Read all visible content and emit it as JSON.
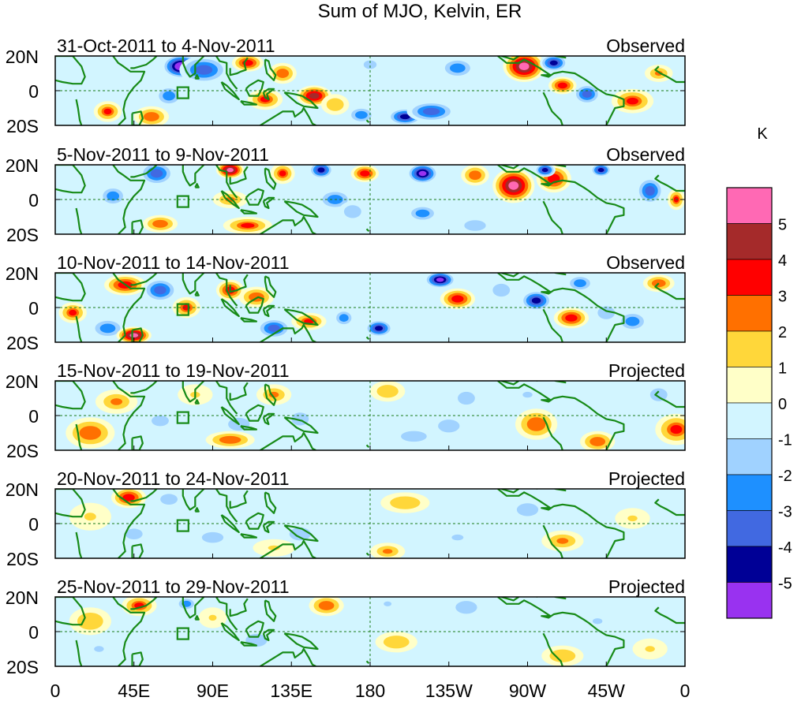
{
  "chart_data": {
    "type": "heatmap",
    "title": "Sum of MJO, Kelvin, ER",
    "colorbar": {
      "unit": "K",
      "tick_labels": [
        "5",
        "4",
        "3",
        "2",
        "1",
        "0",
        "-1",
        "-2",
        "-3",
        "-4",
        "-5"
      ],
      "levels": [
        {
          "range": "> 5",
          "color": "#ff69b4"
        },
        {
          "range": "4 to 5",
          "color": "#a52a2a"
        },
        {
          "range": "3 to 4",
          "color": "#ff0000"
        },
        {
          "range": "2 to 3",
          "color": "#ff7000"
        },
        {
          "range": "1 to 2",
          "color": "#ffd73a"
        },
        {
          "range": "0 to 1",
          "color": "#ffffc8"
        },
        {
          "range": "-1 to 0",
          "color": "#d2f5ff"
        },
        {
          "range": "-2 to -1",
          "color": "#a0d2ff"
        },
        {
          "range": "-3 to -2",
          "color": "#1e90ff"
        },
        {
          "range": "-4 to -3",
          "color": "#4169e1"
        },
        {
          "range": "-5 to -4",
          "color": "#000096"
        },
        {
          "range": "< -5",
          "color": "#9932f0"
        }
      ]
    },
    "x_ticks": [
      "0",
      "45E",
      "90E",
      "135E",
      "180",
      "135W",
      "90W",
      "45W",
      "0"
    ],
    "y_ticks": [
      "20N",
      "0",
      "20S"
    ],
    "xlim": [
      0,
      360
    ],
    "ylim": [
      -20,
      20
    ],
    "panels": [
      {
        "date_range": "31-Oct-2011 to 4-Nov-2011",
        "status": "Observed",
        "blobs": [
          [
            72,
            14,
            11,
            7,
            -6.5
          ],
          [
            85,
            12,
            14,
            8,
            -4
          ],
          [
            65,
            -3,
            8,
            6,
            -3
          ],
          [
            55,
            -15,
            10,
            6,
            2.5
          ],
          [
            110,
            16,
            9,
            5,
            3.5
          ],
          [
            130,
            10,
            8,
            6,
            2.5
          ],
          [
            120,
            -5,
            10,
            6,
            3
          ],
          [
            148,
            -3,
            10,
            6,
            4.5
          ],
          [
            160,
            -8,
            8,
            6,
            1.5
          ],
          [
            200,
            -15,
            10,
            5,
            -5
          ],
          [
            215,
            -12,
            14,
            6,
            -3.5
          ],
          [
            175,
            -14,
            8,
            5,
            -3
          ],
          [
            230,
            13,
            10,
            6,
            -2.5
          ],
          [
            268,
            14,
            12,
            9,
            5.5
          ],
          [
            285,
            16,
            8,
            5,
            -4.5
          ],
          [
            290,
            3,
            8,
            5,
            3.5
          ],
          [
            304,
            -2,
            8,
            6,
            -4
          ],
          [
            330,
            -6,
            12,
            7,
            3
          ],
          [
            345,
            10,
            8,
            5,
            2
          ],
          [
            30,
            -12,
            8,
            6,
            3
          ],
          [
            180,
            15,
            6,
            4,
            -2
          ]
        ]
      },
      {
        "date_range": "5-Nov-2011 to 9-Nov-2011",
        "status": "Observed",
        "blobs": [
          [
            58,
            15,
            10,
            7,
            -4
          ],
          [
            100,
            17,
            8,
            5,
            5.5
          ],
          [
            130,
            15,
            7,
            6,
            3
          ],
          [
            152,
            17,
            7,
            5,
            -5
          ],
          [
            177,
            15,
            8,
            5,
            3.5
          ],
          [
            210,
            15,
            9,
            6,
            -5.5
          ],
          [
            240,
            14,
            8,
            6,
            2.5
          ],
          [
            262,
            8,
            12,
            10,
            5.5
          ],
          [
            285,
            12,
            10,
            8,
            3.5
          ],
          [
            280,
            17,
            6,
            4,
            -5
          ],
          [
            312,
            17,
            6,
            4,
            -5
          ],
          [
            340,
            5,
            8,
            8,
            -4
          ],
          [
            355,
            0,
            5,
            6,
            3
          ],
          [
            160,
            0,
            10,
            6,
            -2.5
          ],
          [
            170,
            -7,
            8,
            6,
            -2
          ],
          [
            210,
            -8,
            9,
            5,
            -3
          ],
          [
            240,
            -15,
            10,
            5,
            -2
          ],
          [
            110,
            -15,
            14,
            5,
            3
          ],
          [
            60,
            -14,
            10,
            5,
            2.5
          ],
          [
            33,
            2,
            8,
            6,
            -2.5
          ],
          [
            100,
            0,
            10,
            5,
            2
          ]
        ]
      },
      {
        "date_range": "10-Nov-2011 to 14-Nov-2011",
        "status": "Observed",
        "blobs": [
          [
            40,
            13,
            12,
            6,
            3.5
          ],
          [
            60,
            10,
            10,
            7,
            -3.5
          ],
          [
            75,
            0,
            8,
            6,
            3
          ],
          [
            100,
            10,
            8,
            6,
            3.5
          ],
          [
            115,
            6,
            10,
            6,
            2.5
          ],
          [
            125,
            -12,
            10,
            6,
            -3.5
          ],
          [
            145,
            -8,
            10,
            5,
            3
          ],
          [
            165,
            -6,
            6,
            5,
            -2.5
          ],
          [
            185,
            -12,
            8,
            5,
            -5
          ],
          [
            220,
            16,
            9,
            5,
            -5.5
          ],
          [
            230,
            5,
            10,
            6,
            3.5
          ],
          [
            255,
            10,
            8,
            6,
            -2
          ],
          [
            275,
            4,
            9,
            6,
            -4.5
          ],
          [
            300,
            14,
            8,
            5,
            -3
          ],
          [
            295,
            -6,
            10,
            6,
            3.5
          ],
          [
            315,
            -3,
            8,
            6,
            -2
          ],
          [
            345,
            14,
            9,
            5,
            2.5
          ],
          [
            330,
            -8,
            9,
            6,
            -3
          ],
          [
            30,
            -12,
            10,
            6,
            -2.5
          ],
          [
            45,
            -16,
            10,
            5,
            5.5
          ],
          [
            10,
            -3,
            8,
            6,
            3
          ]
        ]
      },
      {
        "date_range": "15-Nov-2011 to 19-Nov-2011",
        "status": "Projected",
        "blobs": [
          [
            20,
            -10,
            14,
            9,
            2.5
          ],
          [
            35,
            8,
            12,
            7,
            2
          ],
          [
            80,
            12,
            10,
            6,
            1.2
          ],
          [
            105,
            -5,
            10,
            6,
            -2
          ],
          [
            100,
            -14,
            14,
            5,
            2.5
          ],
          [
            140,
            -2,
            8,
            6,
            -1.5
          ],
          [
            125,
            12,
            10,
            6,
            2
          ],
          [
            190,
            14,
            10,
            6,
            1.5
          ],
          [
            205,
            -12,
            12,
            5,
            -2
          ],
          [
            225,
            -6,
            10,
            6,
            -1.5
          ],
          [
            235,
            10,
            8,
            6,
            -2
          ],
          [
            275,
            -5,
            12,
            9,
            2.5
          ],
          [
            270,
            12,
            10,
            6,
            -1.2
          ],
          [
            310,
            -15,
            10,
            6,
            2.5
          ],
          [
            355,
            -8,
            12,
            9,
            3
          ],
          [
            345,
            12,
            8,
            6,
            -1.5
          ],
          [
            60,
            -3,
            8,
            5,
            -1.5
          ]
        ]
      },
      {
        "date_range": "20-Nov-2011 to 24-Nov-2011",
        "status": "Projected",
        "blobs": [
          [
            42,
            15,
            10,
            6,
            3.5
          ],
          [
            65,
            14,
            8,
            5,
            -2
          ],
          [
            20,
            4,
            12,
            8,
            1.2
          ],
          [
            90,
            -8,
            10,
            5,
            -1.5
          ],
          [
            140,
            -6,
            10,
            6,
            -1.5
          ],
          [
            125,
            -14,
            12,
            5,
            1.2
          ],
          [
            190,
            -16,
            10,
            5,
            2
          ],
          [
            200,
            12,
            14,
            6,
            1.5
          ],
          [
            230,
            -8,
            12,
            6,
            -1.2
          ],
          [
            270,
            8,
            10,
            6,
            -1.5
          ],
          [
            290,
            -10,
            12,
            6,
            2
          ],
          [
            330,
            3,
            10,
            6,
            1.2
          ],
          [
            45,
            -6,
            8,
            5,
            -1.5
          ],
          [
            160,
            10,
            10,
            6,
            -1
          ]
        ]
      },
      {
        "date_range": "25-Nov-2011 to 29-Nov-2011",
        "status": "Projected",
        "blobs": [
          [
            48,
            15,
            10,
            6,
            3
          ],
          [
            75,
            16,
            6,
            4,
            -3
          ],
          [
            20,
            6,
            12,
            8,
            1.5
          ],
          [
            115,
            -5,
            10,
            6,
            -1.5
          ],
          [
            155,
            15,
            10,
            6,
            2.5
          ],
          [
            190,
            16,
            8,
            5,
            -1.2
          ],
          [
            235,
            14,
            10,
            6,
            -2
          ],
          [
            195,
            -6,
            12,
            6,
            1.5
          ],
          [
            240,
            -8,
            12,
            6,
            -1
          ],
          [
            290,
            -14,
            12,
            6,
            1.5
          ],
          [
            310,
            6,
            10,
            6,
            -1.2
          ],
          [
            340,
            -10,
            10,
            6,
            1.2
          ],
          [
            25,
            -10,
            10,
            6,
            -1.2
          ],
          [
            90,
            8,
            8,
            6,
            1
          ]
        ]
      }
    ]
  }
}
